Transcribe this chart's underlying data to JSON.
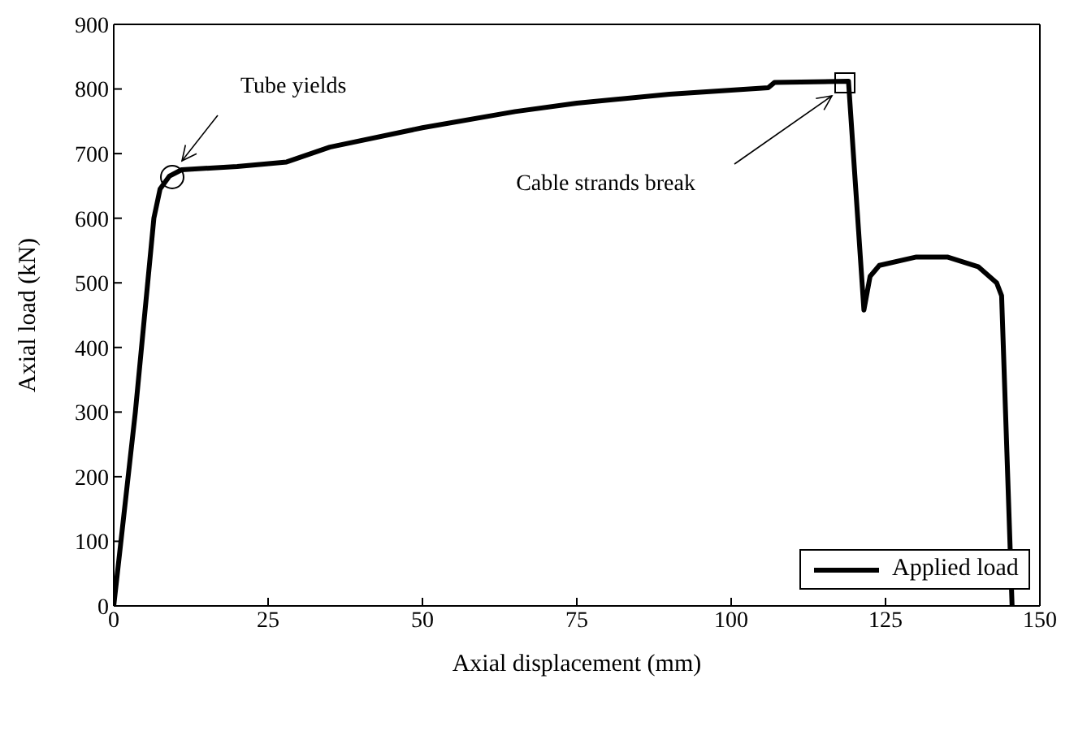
{
  "chart_data": {
    "type": "line",
    "xlabel": "Axial displacement (mm)",
    "ylabel": "Axial load (kN)",
    "xlim": [
      0,
      150
    ],
    "xticks": [
      0,
      25,
      50,
      75,
      100,
      125,
      150
    ],
    "ylim": [
      0,
      900
    ],
    "yticks": [
      0,
      100,
      200,
      300,
      400,
      500,
      600,
      700,
      800,
      900
    ],
    "grid": false,
    "legend": "bottom right",
    "marker": "none",
    "line_style": "solid",
    "annotations": [
      "Tube yields",
      "Cable strands break"
    ],
    "series": [
      {
        "name": "Applied load",
        "color": "#000000",
        "x": [
          0,
          3.5,
          6.5,
          7.5,
          9,
          11,
          20,
          28,
          35,
          50,
          65,
          75,
          90,
          106,
          107,
          119,
          121.5,
          122.5,
          124,
          130,
          135,
          140,
          143,
          143.8,
          145.5
        ],
        "values": [
          0,
          300,
          600,
          645,
          665,
          675,
          680,
          687,
          710,
          740,
          765,
          778,
          792,
          802,
          810,
          812,
          458,
          510,
          527,
          540,
          540,
          525,
          500,
          480,
          0
        ]
      }
    ]
  }
}
